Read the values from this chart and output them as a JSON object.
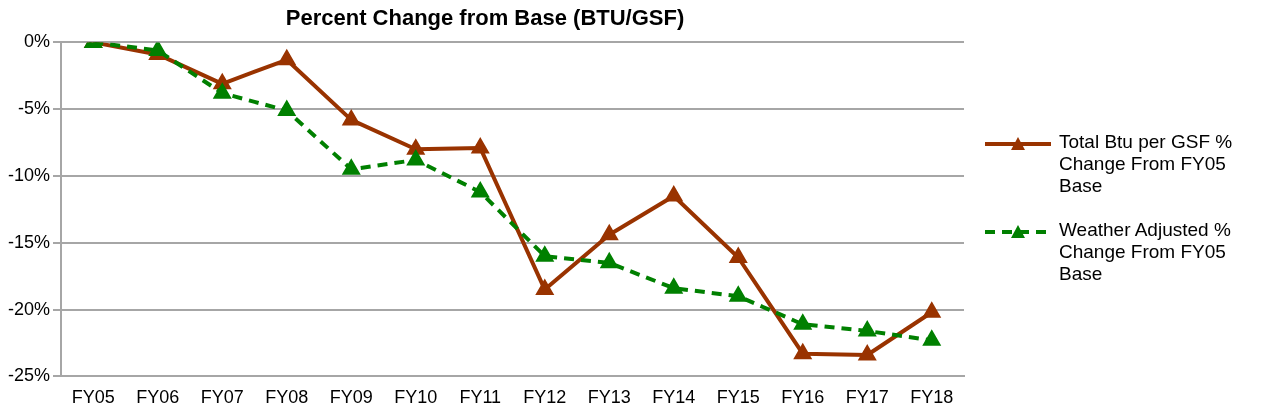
{
  "chart_data": {
    "type": "line",
    "title": "Percent Change from Base (BTU/GSF)",
    "categories": [
      "FY05",
      "FY06",
      "FY07",
      "FY08",
      "FY09",
      "FY10",
      "FY11",
      "FY12",
      "FY13",
      "FY14",
      "FY15",
      "FY16",
      "FY17",
      "FY18"
    ],
    "series": [
      {
        "name": "Total Btu per GSF % Change From FY05 Base",
        "color": "#993300",
        "line_style": "solid",
        "values": [
          0,
          -0.9,
          -3.1,
          -1.3,
          -5.8,
          -8.0,
          -7.9,
          -18.5,
          -14.4,
          -11.5,
          -16.1,
          -23.3,
          -23.4,
          -20.2
        ]
      },
      {
        "name": "Weather Adjusted % Change From FY05 Base",
        "color": "#008000",
        "line_style": "dashed",
        "values": [
          0,
          -0.6,
          -3.8,
          -5.1,
          -9.5,
          -8.8,
          -11.2,
          -16.0,
          -16.5,
          -18.4,
          -19.0,
          -21.1,
          -21.6,
          -22.3
        ]
      }
    ],
    "ylim": [
      -25,
      0
    ],
    "yticks": [
      {
        "value": -25,
        "label": "-25%"
      },
      {
        "value": -20,
        "label": "-20%"
      },
      {
        "value": -15,
        "label": "-15%"
      },
      {
        "value": -10,
        "label": "-10%"
      },
      {
        "value": -5,
        "label": "-5%"
      },
      {
        "value": 0,
        "label": "0%"
      }
    ],
    "grid": "y",
    "legend": "right",
    "marker": "triangle"
  }
}
